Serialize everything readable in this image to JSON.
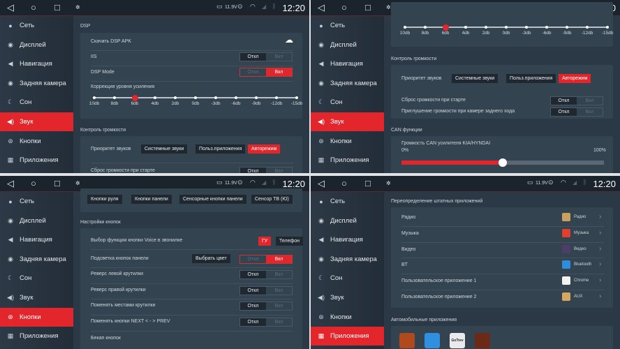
{
  "status": {
    "voltage": "11.9V",
    "time": "12:20",
    "nav_icons": [
      "back-icon",
      "home-icon",
      "recents-icon"
    ]
  },
  "sidebar": {
    "items": [
      {
        "label": "Сеть",
        "icon": "network-icon"
      },
      {
        "label": "Дисплей",
        "icon": "display-icon"
      },
      {
        "label": "Навигация",
        "icon": "navigation-icon"
      },
      {
        "label": "Задняя камера",
        "icon": "camera-icon"
      },
      {
        "label": "Сон",
        "icon": "moon-icon"
      },
      {
        "label": "Звук",
        "icon": "speaker-icon"
      },
      {
        "label": "Кнопки",
        "icon": "steering-wheel-icon"
      },
      {
        "label": "Приложения",
        "icon": "apps-grid-icon"
      }
    ]
  },
  "colors": {
    "accent": "#e3262b",
    "background": "#2b3845",
    "card": "#344350"
  },
  "toggle_labels": {
    "off": "Откл",
    "on": "Вкл"
  },
  "sound": {
    "dsp_title": "DSP",
    "download_dsp": "Скачать DSP APK",
    "iis": {
      "label": "IIS",
      "state": "off"
    },
    "dsp_mode": {
      "label": "DSP Mode",
      "state": "on"
    },
    "gain_title": "Коррекция уровня усиления",
    "gain_ticks": [
      "10db",
      "8db",
      "6db",
      "4db",
      "2db",
      "0db",
      "-3db",
      "-6db",
      "-9db",
      "-12db",
      "-15db"
    ],
    "gain_selected": "6db",
    "volume_title": "Контроль громкости",
    "priority_label": "Приоритет звуков",
    "priority_options": [
      "Системные звуки",
      "Польз.приложения",
      "Авторежим"
    ],
    "priority_selected": "Авторежим",
    "reset_volume": {
      "label": "Сброс громкости при старте",
      "state": "off"
    },
    "mute_rear_camera": {
      "label": "Приглушение громкости при камере заднего хода",
      "state": "off"
    },
    "can_title": "CAN функции",
    "can_volume_label": "Громкость CAN усилителя KIA/HYNDAI",
    "can_min": "0%",
    "can_max": "100%",
    "can_value_percent": 50
  },
  "buttons": {
    "tabs": [
      "Кнопки руля",
      "Кнопки панели",
      "Сенсорные кнопки панели",
      "Сенсор ТВ (Ю)"
    ],
    "settings_title": "Настройки кнопок",
    "voice_label": "Выбор функции кнопки Voice в звонилке",
    "voice_options": [
      "ГУ",
      "Телефон"
    ],
    "voice_selected": "ГУ",
    "backlight_label": "Подсветка кнопок панели",
    "choose_color": "Выбрать цвет",
    "backlight_state": "on",
    "rows": [
      {
        "label": "Реверс левой крутилки",
        "state": "off"
      },
      {
        "label": "Реверс правой крутилки",
        "state": "off"
      },
      {
        "label": "Поменять местами крутилки",
        "state": "off"
      },
      {
        "label": "Поменять кнопки NEXT < - > PREV",
        "state": "off"
      }
    ],
    "backup_label": "Бекап кнопок"
  },
  "apps": {
    "override_title": "Переопределение штатных приложений",
    "rows": [
      {
        "label": "Радио",
        "app": "Радио",
        "icon": "radio-app-icon",
        "color": "#c9a15a"
      },
      {
        "label": "Музыка",
        "app": "Музыка",
        "icon": "music-app-icon",
        "color": "#e0402e"
      },
      {
        "label": "Видео",
        "app": "Видео",
        "icon": "video-app-icon",
        "color": "#4b3f6a"
      },
      {
        "label": "BT",
        "app": "Bluetooth",
        "icon": "bluetooth-app-icon",
        "color": "#2d8ee0"
      },
      {
        "label": "Пользовательское приложение 1",
        "app": "Chrome",
        "icon": "chrome-app-icon",
        "color": "#f2f2f2"
      },
      {
        "label": "Пользовательское приложение 2",
        "app": "AUX",
        "icon": "aux-app-icon",
        "color": "#d3a962"
      }
    ],
    "car_apps_title": "Автомобильные приложения",
    "car_apps": [
      {
        "icon": "tpms-app-icon",
        "color": "#b04a1e"
      },
      {
        "icon": "android-auto-app-icon",
        "color": "#2f8fe0"
      },
      {
        "name": "GoTrev",
        "icon": "gotrev-app-icon",
        "color": "#e8eaec"
      },
      {
        "icon": "car-app-icon",
        "color": "#6b2a18"
      }
    ]
  }
}
